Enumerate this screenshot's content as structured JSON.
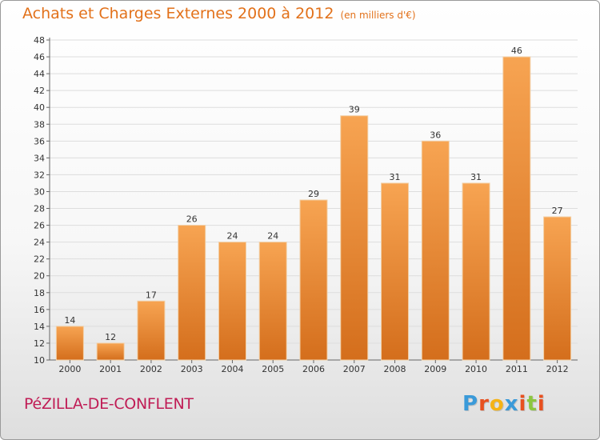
{
  "header": {
    "title": "Achats et Charges Externes 2000 à 2012",
    "unit": "(en milliers d'€)"
  },
  "footer": {
    "commune": "PéZILLA-DE-CONFLENT",
    "logo_letters": [
      "P",
      "r",
      "o",
      "x",
      "i",
      "t",
      "i"
    ],
    "logo_colors": [
      "#3a9ad9",
      "#e8501f",
      "#f5b316",
      "#3a9ad9",
      "#e8501f",
      "#8cc63f",
      "#e8501f"
    ]
  },
  "colors": {
    "bar_light": "#f7a452",
    "bar_dark": "#d46e1c",
    "bar_edge": "#f2cfa5",
    "grid": "#dddddd"
  },
  "chart_data": {
    "type": "bar",
    "title": "Achats et Charges Externes 2000 à 2012",
    "xlabel": "",
    "ylabel": "",
    "categories": [
      "2000",
      "2001",
      "2002",
      "2003",
      "2004",
      "2005",
      "2006",
      "2007",
      "2008",
      "2009",
      "2010",
      "2011",
      "2012"
    ],
    "values": [
      14,
      12,
      17,
      26,
      24,
      24,
      29,
      39,
      31,
      36,
      31,
      46,
      27
    ],
    "ylim": [
      10,
      48
    ],
    "ytick_step": 2,
    "grid": true
  }
}
